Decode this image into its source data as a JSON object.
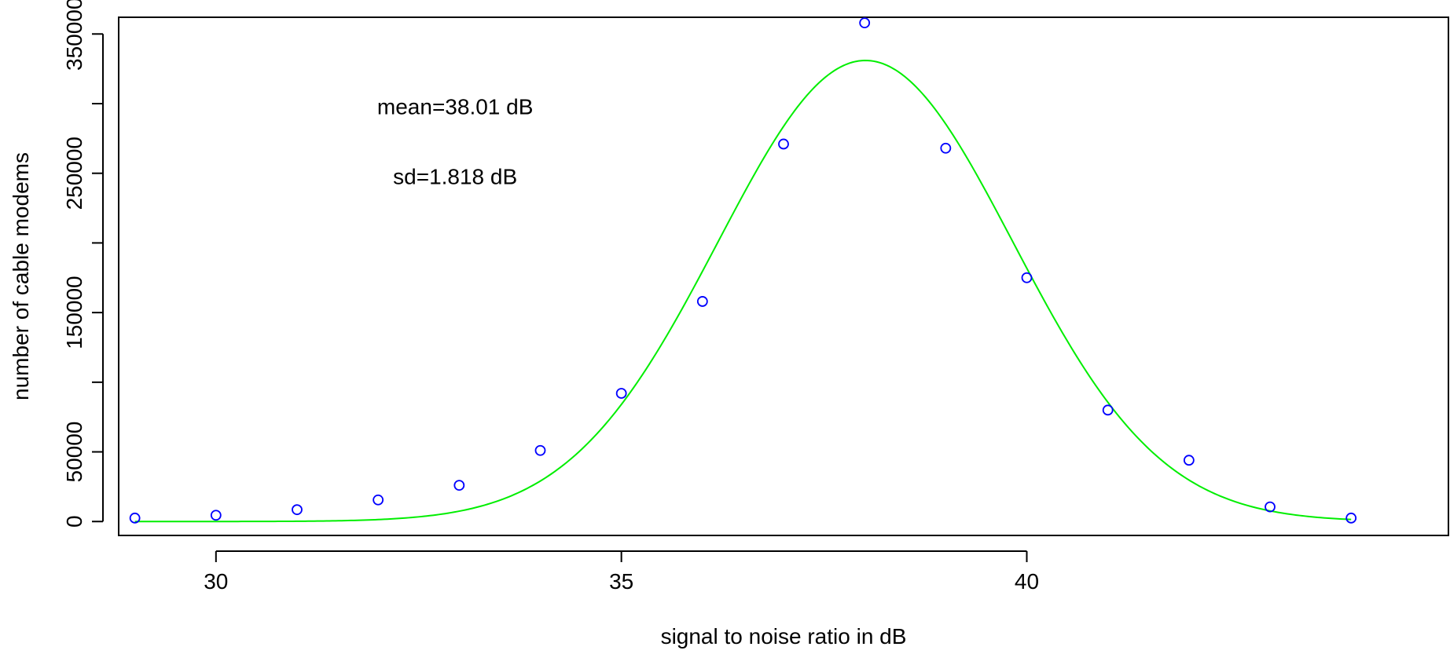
{
  "chart_data": {
    "type": "scatter",
    "title": "",
    "xlabel": "signal to noise ratio in dB",
    "ylabel": "number of cable modems",
    "xlim": [
      28.8,
      45.2
    ],
    "ylim": [
      -10000,
      362000
    ],
    "x_ticks": [
      30,
      35,
      40
    ],
    "y_ticks": [
      0,
      50000,
      100000,
      150000,
      200000,
      250000,
      300000,
      350000
    ],
    "y_tick_labels": [
      "0",
      "50000",
      "",
      "150000",
      "",
      "250000",
      "",
      "350000"
    ],
    "grid": false,
    "legend": "none",
    "series": [
      {
        "kind": "points",
        "marker": "open-circle",
        "color": "#0000ff",
        "x": [
          29,
          30,
          31,
          32,
          33,
          34,
          35,
          36,
          37,
          38,
          39,
          40,
          41,
          42,
          43,
          44
        ],
        "y": [
          2500,
          4500,
          8500,
          15500,
          26000,
          51000,
          92000,
          158000,
          271000,
          358000,
          268000,
          175000,
          80000,
          44000,
          10500,
          2500
        ]
      },
      {
        "kind": "curve",
        "style": "line",
        "color": "#00ee00",
        "function": "normal",
        "mean": 38.01,
        "sd": 1.818,
        "peak": 331000,
        "x_range": [
          29,
          44
        ]
      }
    ],
    "annotations": [
      {
        "id": "mean",
        "text": "mean=38.01 dB",
        "x": 32.95,
        "y": 298000
      },
      {
        "id": "sd",
        "text": "sd=1.818 dB",
        "x": 32.95,
        "y": 248000
      }
    ]
  }
}
